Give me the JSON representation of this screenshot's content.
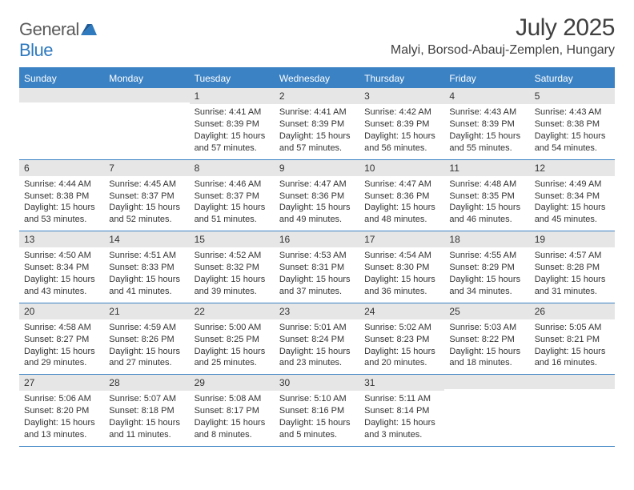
{
  "branding": {
    "logo_text_1": "General",
    "logo_text_2": "Blue",
    "logo_color_gray": "#5a5a5a",
    "logo_color_blue": "#2f7abf"
  },
  "header": {
    "month_title": "July 2025",
    "location": "Malyi, Borsod-Abauj-Zemplen, Hungary"
  },
  "colors": {
    "header_bar": "#3b82c4",
    "daynum_bg": "#e6e6e6",
    "text": "#333333",
    "rule": "#3b82c4"
  },
  "dow": [
    "Sunday",
    "Monday",
    "Tuesday",
    "Wednesday",
    "Thursday",
    "Friday",
    "Saturday"
  ],
  "weeks": [
    [
      {
        "num": "",
        "sunrise": "",
        "sunset": "",
        "daylight": ""
      },
      {
        "num": "",
        "sunrise": "",
        "sunset": "",
        "daylight": ""
      },
      {
        "num": "1",
        "sunrise": "Sunrise: 4:41 AM",
        "sunset": "Sunset: 8:39 PM",
        "daylight": "Daylight: 15 hours and 57 minutes."
      },
      {
        "num": "2",
        "sunrise": "Sunrise: 4:41 AM",
        "sunset": "Sunset: 8:39 PM",
        "daylight": "Daylight: 15 hours and 57 minutes."
      },
      {
        "num": "3",
        "sunrise": "Sunrise: 4:42 AM",
        "sunset": "Sunset: 8:39 PM",
        "daylight": "Daylight: 15 hours and 56 minutes."
      },
      {
        "num": "4",
        "sunrise": "Sunrise: 4:43 AM",
        "sunset": "Sunset: 8:39 PM",
        "daylight": "Daylight: 15 hours and 55 minutes."
      },
      {
        "num": "5",
        "sunrise": "Sunrise: 4:43 AM",
        "sunset": "Sunset: 8:38 PM",
        "daylight": "Daylight: 15 hours and 54 minutes."
      }
    ],
    [
      {
        "num": "6",
        "sunrise": "Sunrise: 4:44 AM",
        "sunset": "Sunset: 8:38 PM",
        "daylight": "Daylight: 15 hours and 53 minutes."
      },
      {
        "num": "7",
        "sunrise": "Sunrise: 4:45 AM",
        "sunset": "Sunset: 8:37 PM",
        "daylight": "Daylight: 15 hours and 52 minutes."
      },
      {
        "num": "8",
        "sunrise": "Sunrise: 4:46 AM",
        "sunset": "Sunset: 8:37 PM",
        "daylight": "Daylight: 15 hours and 51 minutes."
      },
      {
        "num": "9",
        "sunrise": "Sunrise: 4:47 AM",
        "sunset": "Sunset: 8:36 PM",
        "daylight": "Daylight: 15 hours and 49 minutes."
      },
      {
        "num": "10",
        "sunrise": "Sunrise: 4:47 AM",
        "sunset": "Sunset: 8:36 PM",
        "daylight": "Daylight: 15 hours and 48 minutes."
      },
      {
        "num": "11",
        "sunrise": "Sunrise: 4:48 AM",
        "sunset": "Sunset: 8:35 PM",
        "daylight": "Daylight: 15 hours and 46 minutes."
      },
      {
        "num": "12",
        "sunrise": "Sunrise: 4:49 AM",
        "sunset": "Sunset: 8:34 PM",
        "daylight": "Daylight: 15 hours and 45 minutes."
      }
    ],
    [
      {
        "num": "13",
        "sunrise": "Sunrise: 4:50 AM",
        "sunset": "Sunset: 8:34 PM",
        "daylight": "Daylight: 15 hours and 43 minutes."
      },
      {
        "num": "14",
        "sunrise": "Sunrise: 4:51 AM",
        "sunset": "Sunset: 8:33 PM",
        "daylight": "Daylight: 15 hours and 41 minutes."
      },
      {
        "num": "15",
        "sunrise": "Sunrise: 4:52 AM",
        "sunset": "Sunset: 8:32 PM",
        "daylight": "Daylight: 15 hours and 39 minutes."
      },
      {
        "num": "16",
        "sunrise": "Sunrise: 4:53 AM",
        "sunset": "Sunset: 8:31 PM",
        "daylight": "Daylight: 15 hours and 37 minutes."
      },
      {
        "num": "17",
        "sunrise": "Sunrise: 4:54 AM",
        "sunset": "Sunset: 8:30 PM",
        "daylight": "Daylight: 15 hours and 36 minutes."
      },
      {
        "num": "18",
        "sunrise": "Sunrise: 4:55 AM",
        "sunset": "Sunset: 8:29 PM",
        "daylight": "Daylight: 15 hours and 34 minutes."
      },
      {
        "num": "19",
        "sunrise": "Sunrise: 4:57 AM",
        "sunset": "Sunset: 8:28 PM",
        "daylight": "Daylight: 15 hours and 31 minutes."
      }
    ],
    [
      {
        "num": "20",
        "sunrise": "Sunrise: 4:58 AM",
        "sunset": "Sunset: 8:27 PM",
        "daylight": "Daylight: 15 hours and 29 minutes."
      },
      {
        "num": "21",
        "sunrise": "Sunrise: 4:59 AM",
        "sunset": "Sunset: 8:26 PM",
        "daylight": "Daylight: 15 hours and 27 minutes."
      },
      {
        "num": "22",
        "sunrise": "Sunrise: 5:00 AM",
        "sunset": "Sunset: 8:25 PM",
        "daylight": "Daylight: 15 hours and 25 minutes."
      },
      {
        "num": "23",
        "sunrise": "Sunrise: 5:01 AM",
        "sunset": "Sunset: 8:24 PM",
        "daylight": "Daylight: 15 hours and 23 minutes."
      },
      {
        "num": "24",
        "sunrise": "Sunrise: 5:02 AM",
        "sunset": "Sunset: 8:23 PM",
        "daylight": "Daylight: 15 hours and 20 minutes."
      },
      {
        "num": "25",
        "sunrise": "Sunrise: 5:03 AM",
        "sunset": "Sunset: 8:22 PM",
        "daylight": "Daylight: 15 hours and 18 minutes."
      },
      {
        "num": "26",
        "sunrise": "Sunrise: 5:05 AM",
        "sunset": "Sunset: 8:21 PM",
        "daylight": "Daylight: 15 hours and 16 minutes."
      }
    ],
    [
      {
        "num": "27",
        "sunrise": "Sunrise: 5:06 AM",
        "sunset": "Sunset: 8:20 PM",
        "daylight": "Daylight: 15 hours and 13 minutes."
      },
      {
        "num": "28",
        "sunrise": "Sunrise: 5:07 AM",
        "sunset": "Sunset: 8:18 PM",
        "daylight": "Daylight: 15 hours and 11 minutes."
      },
      {
        "num": "29",
        "sunrise": "Sunrise: 5:08 AM",
        "sunset": "Sunset: 8:17 PM",
        "daylight": "Daylight: 15 hours and 8 minutes."
      },
      {
        "num": "30",
        "sunrise": "Sunrise: 5:10 AM",
        "sunset": "Sunset: 8:16 PM",
        "daylight": "Daylight: 15 hours and 5 minutes."
      },
      {
        "num": "31",
        "sunrise": "Sunrise: 5:11 AM",
        "sunset": "Sunset: 8:14 PM",
        "daylight": "Daylight: 15 hours and 3 minutes."
      },
      {
        "num": "",
        "sunrise": "",
        "sunset": "",
        "daylight": ""
      },
      {
        "num": "",
        "sunrise": "",
        "sunset": "",
        "daylight": ""
      }
    ]
  ]
}
